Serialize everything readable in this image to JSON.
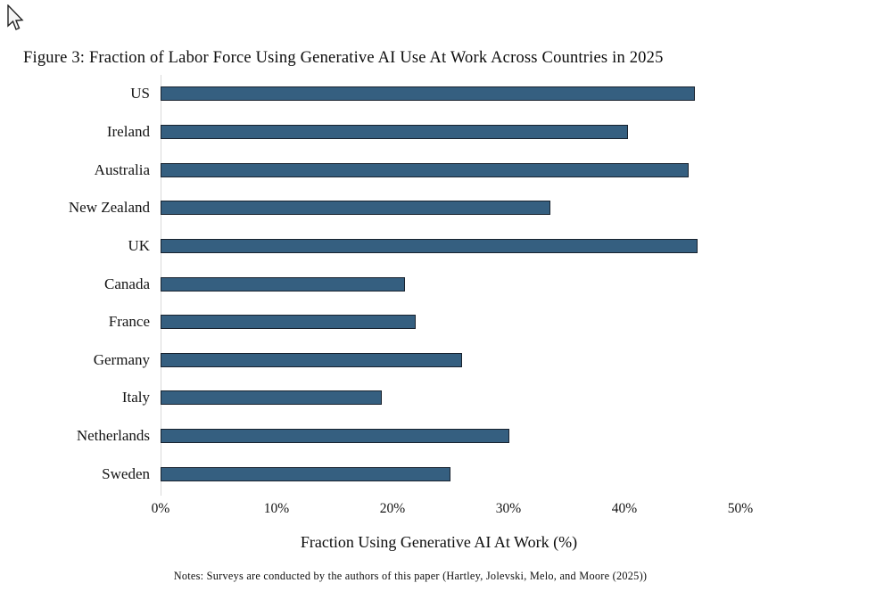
{
  "figure": {
    "title": "Figure 3: Fraction of Labor Force Using Generative AI Use At Work Across Countries in 2025",
    "notes": "Notes: Surveys are conducted by the authors of this paper (Hartley, Jolevski, Melo, and Moore (2025))"
  },
  "icons": {
    "cursor": "arrow-pointer"
  },
  "chart_data": {
    "type": "bar",
    "orientation": "horizontal",
    "title": "Figure 3: Fraction of Labor Force Using Generative AI Use At Work Across Countries in 2025",
    "categories": [
      "US",
      "Ireland",
      "Australia",
      "New Zealand",
      "UK",
      "Canada",
      "France",
      "Germany",
      "Italy",
      "Netherlands",
      "Sweden"
    ],
    "values": [
      46.1,
      40.3,
      45.5,
      33.6,
      46.3,
      21.1,
      22.0,
      26.0,
      19.1,
      30.1,
      25.0
    ],
    "xlabel": "Fraction Using Generative AI At Work (%)",
    "ylabel": "",
    "xlim": [
      0,
      50
    ],
    "xtick_labels": [
      "0%",
      "10%",
      "20%",
      "30%",
      "40%",
      "50%"
    ],
    "xtick_values": [
      0,
      10,
      20,
      30,
      40,
      50
    ],
    "grid": false,
    "legend": false,
    "bar_color": "#355f80",
    "bar_border_color": "#18222e",
    "axis_line_color": "#d9d9d9"
  }
}
